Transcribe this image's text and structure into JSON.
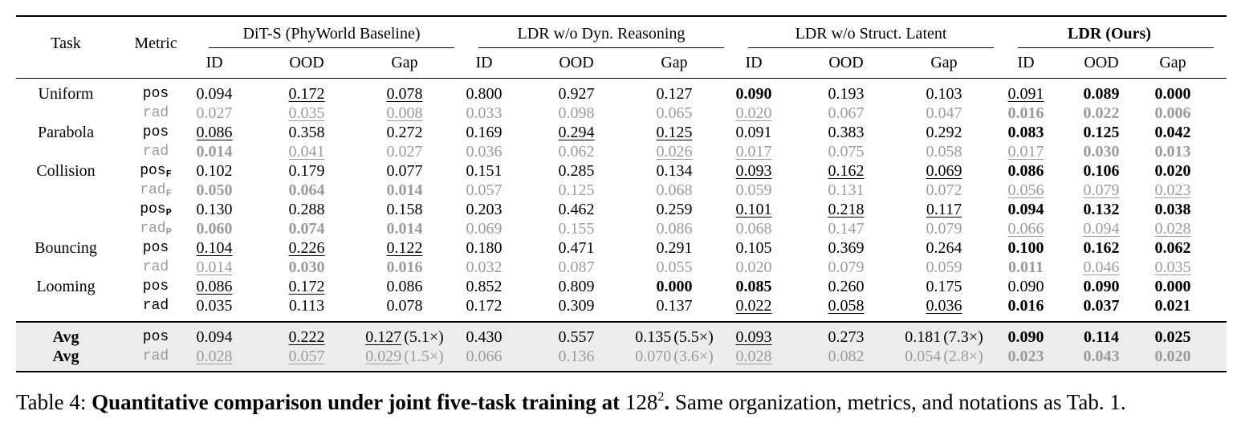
{
  "headers": {
    "task": "Task",
    "metric": "Metric",
    "groups": [
      "DiT-S (PhyWorld Baseline)",
      "LDR w/o Dyn. Reasoning",
      "LDR w/o Struct. Latent",
      "LDR (Ours)"
    ],
    "sub": [
      "ID",
      "OOD",
      "Gap"
    ]
  },
  "rows": [
    {
      "task": "Uniform",
      "metric": "pos",
      "sub": "",
      "style": "normal",
      "cells": [
        [
          "0.094",
          ""
        ],
        [
          "0.172",
          "u"
        ],
        [
          "0.078",
          "u"
        ],
        [
          "0.800",
          ""
        ],
        [
          "0.927",
          ""
        ],
        [
          "0.127",
          ""
        ],
        [
          "0.090",
          "b"
        ],
        [
          "0.193",
          ""
        ],
        [
          "0.103",
          ""
        ],
        [
          "0.091",
          "u"
        ],
        [
          "0.089",
          "b"
        ],
        [
          "0.000",
          "b"
        ]
      ]
    },
    {
      "task": "",
      "metric": "rad",
      "sub": "",
      "style": "gray",
      "cells": [
        [
          "0.027",
          ""
        ],
        [
          "0.035",
          "u"
        ],
        [
          "0.008",
          "u"
        ],
        [
          "0.033",
          ""
        ],
        [
          "0.098",
          ""
        ],
        [
          "0.065",
          ""
        ],
        [
          "0.020",
          "u"
        ],
        [
          "0.067",
          ""
        ],
        [
          "0.047",
          ""
        ],
        [
          "0.016",
          "b"
        ],
        [
          "0.022",
          "b"
        ],
        [
          "0.006",
          "b"
        ]
      ]
    },
    {
      "task": "Parabola",
      "metric": "pos",
      "sub": "",
      "style": "normal",
      "cells": [
        [
          "0.086",
          "u"
        ],
        [
          "0.358",
          ""
        ],
        [
          "0.272",
          ""
        ],
        [
          "0.169",
          ""
        ],
        [
          "0.294",
          "u"
        ],
        [
          "0.125",
          "u"
        ],
        [
          "0.091",
          ""
        ],
        [
          "0.383",
          ""
        ],
        [
          "0.292",
          ""
        ],
        [
          "0.083",
          "b"
        ],
        [
          "0.125",
          "b"
        ],
        [
          "0.042",
          "b"
        ]
      ]
    },
    {
      "task": "",
      "metric": "rad",
      "sub": "",
      "style": "gray",
      "cells": [
        [
          "0.014",
          "b"
        ],
        [
          "0.041",
          "u"
        ],
        [
          "0.027",
          ""
        ],
        [
          "0.036",
          ""
        ],
        [
          "0.062",
          ""
        ],
        [
          "0.026",
          "u"
        ],
        [
          "0.017",
          "u"
        ],
        [
          "0.075",
          ""
        ],
        [
          "0.058",
          ""
        ],
        [
          "0.017",
          "u"
        ],
        [
          "0.030",
          "b"
        ],
        [
          "0.013",
          "b"
        ]
      ]
    },
    {
      "task": "Collision",
      "metric": "pos",
      "sub": "F",
      "style": "normal",
      "cells": [
        [
          "0.102",
          ""
        ],
        [
          "0.179",
          ""
        ],
        [
          "0.077",
          ""
        ],
        [
          "0.151",
          ""
        ],
        [
          "0.285",
          ""
        ],
        [
          "0.134",
          ""
        ],
        [
          "0.093",
          "u"
        ],
        [
          "0.162",
          "u"
        ],
        [
          "0.069",
          "u"
        ],
        [
          "0.086",
          "b"
        ],
        [
          "0.106",
          "b"
        ],
        [
          "0.020",
          "b"
        ]
      ]
    },
    {
      "task": "",
      "metric": "rad",
      "sub": "F",
      "style": "gray",
      "cells": [
        [
          "0.050",
          "b"
        ],
        [
          "0.064",
          "b"
        ],
        [
          "0.014",
          "b"
        ],
        [
          "0.057",
          ""
        ],
        [
          "0.125",
          ""
        ],
        [
          "0.068",
          ""
        ],
        [
          "0.059",
          ""
        ],
        [
          "0.131",
          ""
        ],
        [
          "0.072",
          ""
        ],
        [
          "0.056",
          "u"
        ],
        [
          "0.079",
          "u"
        ],
        [
          "0.023",
          "u"
        ]
      ]
    },
    {
      "task": "",
      "metric": "pos",
      "sub": "P",
      "style": "normal",
      "cells": [
        [
          "0.130",
          ""
        ],
        [
          "0.288",
          ""
        ],
        [
          "0.158",
          ""
        ],
        [
          "0.203",
          ""
        ],
        [
          "0.462",
          ""
        ],
        [
          "0.259",
          ""
        ],
        [
          "0.101",
          "u"
        ],
        [
          "0.218",
          "u"
        ],
        [
          "0.117",
          "u"
        ],
        [
          "0.094",
          "b"
        ],
        [
          "0.132",
          "b"
        ],
        [
          "0.038",
          "b"
        ]
      ]
    },
    {
      "task": "",
      "metric": "rad",
      "sub": "P",
      "style": "gray",
      "cells": [
        [
          "0.060",
          "b"
        ],
        [
          "0.074",
          "b"
        ],
        [
          "0.014",
          "b"
        ],
        [
          "0.069",
          ""
        ],
        [
          "0.155",
          ""
        ],
        [
          "0.086",
          ""
        ],
        [
          "0.068",
          ""
        ],
        [
          "0.147",
          ""
        ],
        [
          "0.079",
          ""
        ],
        [
          "0.066",
          "u"
        ],
        [
          "0.094",
          "u"
        ],
        [
          "0.028",
          "u"
        ]
      ]
    },
    {
      "task": "Bouncing",
      "metric": "pos",
      "sub": "",
      "style": "normal",
      "cells": [
        [
          "0.104",
          "u"
        ],
        [
          "0.226",
          "u"
        ],
        [
          "0.122",
          "u"
        ],
        [
          "0.180",
          ""
        ],
        [
          "0.471",
          ""
        ],
        [
          "0.291",
          ""
        ],
        [
          "0.105",
          ""
        ],
        [
          "0.369",
          ""
        ],
        [
          "0.264",
          ""
        ],
        [
          "0.100",
          "b"
        ],
        [
          "0.162",
          "b"
        ],
        [
          "0.062",
          "b"
        ]
      ]
    },
    {
      "task": "",
      "metric": "rad",
      "sub": "",
      "style": "gray",
      "cells": [
        [
          "0.014",
          "u"
        ],
        [
          "0.030",
          "b"
        ],
        [
          "0.016",
          "b"
        ],
        [
          "0.032",
          ""
        ],
        [
          "0.087",
          ""
        ],
        [
          "0.055",
          ""
        ],
        [
          "0.020",
          ""
        ],
        [
          "0.079",
          ""
        ],
        [
          "0.059",
          ""
        ],
        [
          "0.011",
          "b"
        ],
        [
          "0.046",
          "u"
        ],
        [
          "0.035",
          "u"
        ]
      ]
    },
    {
      "task": "Looming",
      "metric": "pos",
      "sub": "",
      "style": "normal",
      "cells": [
        [
          "0.086",
          "u"
        ],
        [
          "0.172",
          "u"
        ],
        [
          "0.086",
          ""
        ],
        [
          "0.852",
          ""
        ],
        [
          "0.809",
          ""
        ],
        [
          "0.000",
          "b"
        ],
        [
          "0.085",
          "b"
        ],
        [
          "0.260",
          ""
        ],
        [
          "0.175",
          ""
        ],
        [
          "0.090",
          ""
        ],
        [
          "0.090",
          "b"
        ],
        [
          "0.000",
          "b"
        ]
      ]
    },
    {
      "task": "",
      "metric": "rad",
      "sub": "",
      "style": "normal",
      "cells": [
        [
          "0.035",
          ""
        ],
        [
          "0.113",
          ""
        ],
        [
          "0.078",
          ""
        ],
        [
          "0.172",
          ""
        ],
        [
          "0.309",
          ""
        ],
        [
          "0.137",
          ""
        ],
        [
          "0.022",
          "u"
        ],
        [
          "0.058",
          "u"
        ],
        [
          "0.036",
          "u"
        ],
        [
          "0.016",
          "b"
        ],
        [
          "0.037",
          "b"
        ],
        [
          "0.021",
          "b"
        ]
      ]
    }
  ],
  "avg_rows": [
    {
      "task": "Avg",
      "metric": "pos",
      "style": "normal",
      "cells": [
        [
          "0.094",
          ""
        ],
        [
          "0.222",
          "u"
        ],
        [
          "0.127",
          "u",
          "(5.1×)"
        ],
        [
          "0.430",
          ""
        ],
        [
          "0.557",
          ""
        ],
        [
          "0.135",
          "",
          "(5.5×)"
        ],
        [
          "0.093",
          "u"
        ],
        [
          "0.273",
          ""
        ],
        [
          "0.181",
          "",
          "(7.3×)"
        ],
        [
          "0.090",
          "b"
        ],
        [
          "0.114",
          "b"
        ],
        [
          "0.025",
          "b"
        ]
      ]
    },
    {
      "task": "Avg",
      "metric": "rad",
      "style": "gray",
      "cells": [
        [
          "0.028",
          "u"
        ],
        [
          "0.057",
          "u"
        ],
        [
          "0.029",
          "u",
          "(1.5×)"
        ],
        [
          "0.066",
          ""
        ],
        [
          "0.136",
          ""
        ],
        [
          "0.070",
          "",
          "(3.6×)"
        ],
        [
          "0.028",
          "u"
        ],
        [
          "0.082",
          ""
        ],
        [
          "0.054",
          "",
          "(2.8×)"
        ],
        [
          "0.023",
          "b"
        ],
        [
          "0.043",
          "b"
        ],
        [
          "0.020",
          "b"
        ]
      ]
    }
  ],
  "caption": {
    "label": "Table 4: ",
    "bold": "Quantitative comparison under joint five-task training at ",
    "res_base": "128",
    "res_exp": "2",
    "bold_end": ".",
    "rest": " Same organization, metrics, and notations as Tab. 1."
  }
}
